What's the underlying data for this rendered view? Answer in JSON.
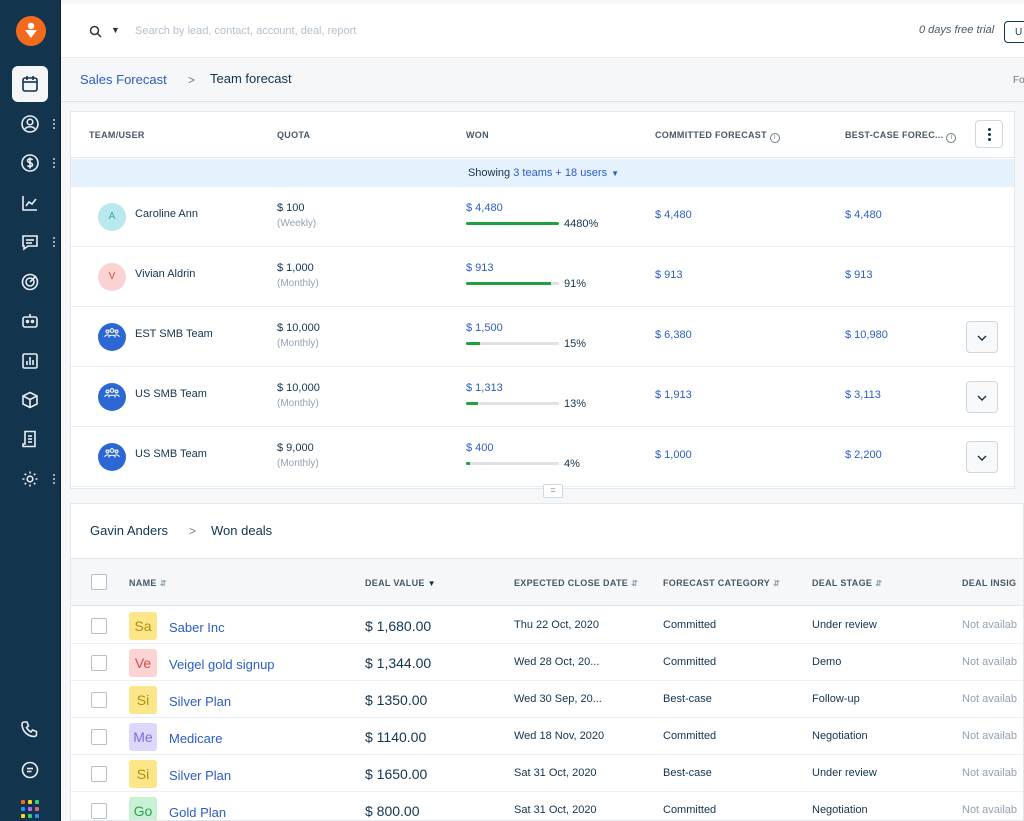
{
  "search": {
    "placeholder": "Search by lead, contact, account, deal, report"
  },
  "header": {
    "trial_text": "0 days free trial",
    "upgrade_label": "U"
  },
  "breadcrumb": {
    "parent": "Sales Forecast",
    "separator": ">",
    "current": "Team forecast",
    "right_text": "Fo"
  },
  "forecast": {
    "headers": {
      "team_user": "TEAM/USER",
      "quota": "QUOTA",
      "won": "WON",
      "committed": "COMMITTED FORECAST",
      "best_case": "BEST-CASE FOREC..."
    },
    "showing": {
      "prefix": "Showing",
      "link": "3 teams + 18 users"
    },
    "rows": [
      {
        "avatar_text": "A",
        "avatar_bg": "#b8e9ee",
        "avatar_fg": "#3aa3ad",
        "name": "Caroline Ann",
        "quota": "$ 100",
        "period": "(Weekly)",
        "won": "$ 4,480",
        "progress": 1.0,
        "percent": "4480%",
        "committed": "$ 4,480",
        "best_case": "$ 4,480",
        "expandable": false
      },
      {
        "avatar_text": "V",
        "avatar_bg": "#fbd1d1",
        "avatar_fg": "#d64b4b",
        "name": "Vivian Aldrin",
        "quota": "$ 1,000",
        "period": "(Monthly)",
        "won": "$ 913",
        "progress": 0.91,
        "percent": "91%",
        "committed": "$ 913",
        "best_case": "$ 913",
        "expandable": false
      },
      {
        "avatar_text": "",
        "avatar_bg": "#2c68d5",
        "avatar_fg": "#ffffff",
        "name": "EST SMB Team",
        "quota": "$ 10,000",
        "period": "(Monthly)",
        "won": "$ 1,500",
        "progress": 0.15,
        "percent": "15%",
        "committed": "$ 6,380",
        "best_case": "$ 10,980",
        "expandable": true
      },
      {
        "avatar_text": "",
        "avatar_bg": "#2c68d5",
        "avatar_fg": "#ffffff",
        "name": "US SMB Team",
        "quota": "$ 10,000",
        "period": "(Monthly)",
        "won": "$ 1,313",
        "progress": 0.13,
        "percent": "13%",
        "committed": "$ 1,913",
        "best_case": "$ 3,113",
        "expandable": true
      },
      {
        "avatar_text": "",
        "avatar_bg": "#2c68d5",
        "avatar_fg": "#ffffff",
        "name": "US SMB Team",
        "quota": "$ 9,000",
        "period": "(Monthly)",
        "won": "$ 400",
        "progress": 0.04,
        "percent": "4%",
        "committed": "$ 1,000",
        "best_case": "$ 2,200",
        "expandable": true
      }
    ]
  },
  "deals": {
    "breadcrumb_parent": "Gavin Anders",
    "breadcrumb_separator": ">",
    "breadcrumb_current": "Won deals",
    "headers": {
      "name": "NAME",
      "value": "DEAL VALUE",
      "close_date": "EXPECTED CLOSE DATE",
      "category": "FORECAST CATEGORY",
      "stage": "DEAL STAGE",
      "insights": "DEAL INSIG"
    },
    "rows": [
      {
        "badge": "Sa",
        "badge_bg": "#fbe68a",
        "badge_fg": "#b08e0c",
        "name": "Saber Inc",
        "value": "$ 1,680.00",
        "date": "Thu 22 Oct, 2020",
        "category": "Committed",
        "stage": "Under review",
        "insights": "Not availab"
      },
      {
        "badge": "Ve",
        "badge_bg": "#fdd3d3",
        "badge_fg": "#d64b4b",
        "name": "Veigel gold signup",
        "value": "$ 1,344.00",
        "date": "Wed 28 Oct, 20...",
        "category": "Committed",
        "stage": "Demo",
        "insights": "Not availab"
      },
      {
        "badge": "Si",
        "badge_bg": "#fbe68a",
        "badge_fg": "#b08e0c",
        "name": "Silver Plan",
        "value": "$ 1350.00",
        "date": "Wed 30 Sep, 20...",
        "category": "Best-case",
        "stage": "Follow-up",
        "insights": "Not availab"
      },
      {
        "badge": "Me",
        "badge_bg": "#dcd7fb",
        "badge_fg": "#7a6fd9",
        "name": "Medicare",
        "value": "$ 1140.00",
        "date": "Wed 18 Nov, 2020",
        "category": "Committed",
        "stage": "Negotiation",
        "insights": "Not availab"
      },
      {
        "badge": "Si",
        "badge_bg": "#fbe68a",
        "badge_fg": "#b08e0c",
        "name": "Silver Plan",
        "value": "$ 1650.00",
        "date": "Sat 31 Oct, 2020",
        "category": "Best-case",
        "stage": "Under review",
        "insights": "Not availab"
      },
      {
        "badge": "Go",
        "badge_bg": "#c8f0d2",
        "badge_fg": "#2f9e55",
        "name": "Gold Plan",
        "value": "$ 800.00",
        "date": "Sat 31 Oct, 2020",
        "category": "Committed",
        "stage": "Negotiation",
        "insights": "Not availab"
      }
    ]
  },
  "colors": {
    "sidebar": "#12344d",
    "brand_orange": "#f26b1d",
    "link_blue": "#2c5cc5",
    "progress_green": "#1ca33f",
    "banner_blue": "#e5f2fd"
  },
  "sidebar_icons": [
    "calendar-icon",
    "contacts-icon",
    "dollar-icon",
    "chart-icon",
    "chat-icon",
    "target-icon",
    "bot-icon",
    "reports-icon",
    "box-icon",
    "invoice-icon",
    "settings-icon",
    "phone-icon",
    "message-icon",
    "apps-grid-icon"
  ]
}
